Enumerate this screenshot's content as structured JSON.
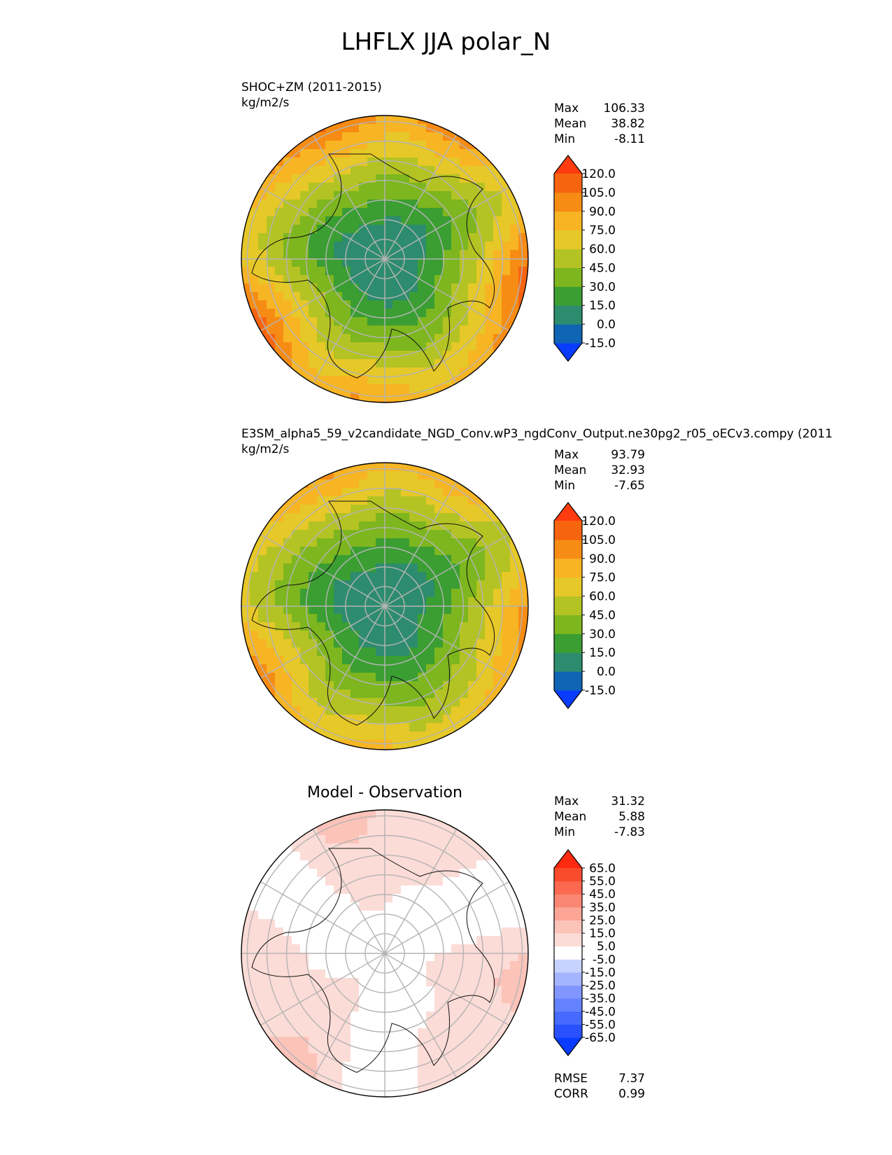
{
  "title": "LHFLX JJA polar_N",
  "panels": [
    {
      "title_line1": "SHOC+ZM (2011-2015)",
      "title_line2": "kg/m2/s",
      "stats": [
        {
          "label": "Max",
          "value": "106.33"
        },
        {
          "label": "Mean",
          "value": "38.82"
        },
        {
          "label": "Min",
          "value": "-8.11"
        }
      ]
    },
    {
      "title_line1": "E3SM_alpha5_59_v2candidate_NGD_Conv.wP3_ngdConv_Output.ne30pg2_r05_oECv3.compy (2011",
      "title_line2": "kg/m2/s",
      "stats": [
        {
          "label": "Max",
          "value": "93.79"
        },
        {
          "label": "Mean",
          "value": "32.93"
        },
        {
          "label": "Min",
          "value": "-7.65"
        }
      ]
    },
    {
      "center_title": "Model - Observation",
      "stats": [
        {
          "label": "Max",
          "value": "31.32"
        },
        {
          "label": "Mean",
          "value": "5.88"
        },
        {
          "label": "Min",
          "value": "-7.83"
        }
      ],
      "metrics": [
        {
          "label": "RMSE",
          "value": "7.37"
        },
        {
          "label": "CORR",
          "value": "0.99"
        }
      ]
    }
  ],
  "chart_data": [
    {
      "type": "heatmap",
      "projection": "north polar stereographic",
      "title": "SHOC+ZM (2011-2015)",
      "units": "kg/m2/s",
      "colorbar": {
        "levels": [
          -15.0,
          0.0,
          15.0,
          30.0,
          45.0,
          60.0,
          75.0,
          90.0,
          105.0,
          120.0
        ],
        "tick_labels": [
          "120.0",
          "105.0",
          "90.0",
          "75.0",
          "60.0",
          "45.0",
          "30.0",
          "15.0",
          "0.0",
          "-15.0"
        ],
        "colors": [
          "#0a3cff",
          "#0f64b4",
          "#2d8c6e",
          "#3a9e32",
          "#7db61e",
          "#b4c324",
          "#e6c828",
          "#f7b524",
          "#f78c14",
          "#f76410",
          "#ff3c0f"
        ],
        "extend": "both"
      },
      "stats": {
        "max": 106.33,
        "mean": 38.82,
        "min": -8.11
      }
    },
    {
      "type": "heatmap",
      "projection": "north polar stereographic",
      "title": "E3SM_alpha5_59_v2candidate_NGD_Conv.wP3_ngdConv_Output.ne30pg2_r05_oECv3.compy (2011",
      "units": "kg/m2/s",
      "colorbar": {
        "levels": [
          -15.0,
          0.0,
          15.0,
          30.0,
          45.0,
          60.0,
          75.0,
          90.0,
          105.0,
          120.0
        ],
        "tick_labels": [
          "120.0",
          "105.0",
          "90.0",
          "75.0",
          "60.0",
          "45.0",
          "30.0",
          "15.0",
          "0.0",
          "-15.0"
        ],
        "colors": [
          "#0a3cff",
          "#0f64b4",
          "#2d8c6e",
          "#3a9e32",
          "#7db61e",
          "#b4c324",
          "#e6c828",
          "#f7b524",
          "#f78c14",
          "#f76410",
          "#ff3c0f"
        ],
        "extend": "both"
      },
      "stats": {
        "max": 93.79,
        "mean": 32.93,
        "min": -7.65
      }
    },
    {
      "type": "heatmap",
      "projection": "north polar stereographic",
      "title": "Model - Observation",
      "colorbar": {
        "levels": [
          -65.0,
          -55.0,
          -45.0,
          -35.0,
          -25.0,
          -15.0,
          -5.0,
          5.0,
          15.0,
          25.0,
          35.0,
          45.0,
          55.0,
          65.0
        ],
        "tick_labels": [
          "65.0",
          "55.0",
          "45.0",
          "35.0",
          "25.0",
          "15.0",
          "5.0",
          "-5.0",
          "-15.0",
          "-25.0",
          "-35.0",
          "-45.0",
          "-55.0",
          "-65.0"
        ],
        "colors": [
          "#0a3cff",
          "#2850ff",
          "#4669ff",
          "#6482ff",
          "#8296ff",
          "#a5b4ff",
          "#c8d2ff",
          "#ffffff",
          "#fcdcd7",
          "#fcc3b9",
          "#fca596",
          "#fa8773",
          "#fa6950",
          "#fa4b2d",
          "#ff2a0f"
        ],
        "extend": "both"
      },
      "stats": {
        "max": 31.32,
        "mean": 5.88,
        "min": -7.83
      },
      "metrics": {
        "rmse": 7.37,
        "corr": 0.99
      }
    }
  ]
}
